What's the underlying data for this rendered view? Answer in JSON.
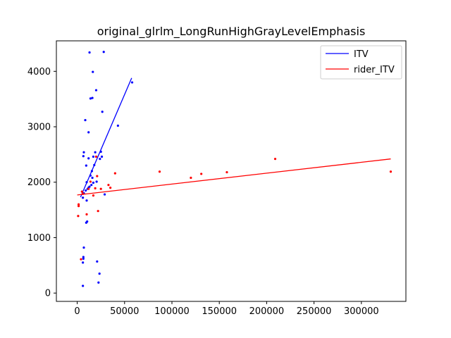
{
  "chart_data": {
    "type": "scatter",
    "title": "original_glrlm_LongRunHighGrayLevelEmphasis",
    "xlabel": "",
    "ylabel": "",
    "xlim": [
      -22000,
      347000
    ],
    "ylim": [
      -150,
      4550
    ],
    "x_ticks": [
      0,
      50000,
      100000,
      150000,
      200000,
      250000,
      300000
    ],
    "x_tick_labels": [
      "0",
      "50000",
      "100000",
      "150000",
      "200000",
      "250000",
      "300000"
    ],
    "y_ticks": [
      0,
      1000,
      2000,
      3000,
      4000
    ],
    "y_tick_labels": [
      "0",
      "1000",
      "2000",
      "3000",
      "4000"
    ],
    "grid": false,
    "legend_position": "top-right",
    "series": [
      {
        "name": "ITV",
        "color": "#0000ff",
        "points": [
          [
            6000,
            130
          ],
          [
            6000,
            550
          ],
          [
            6500,
            620
          ],
          [
            6500,
            650
          ],
          [
            7000,
            820
          ],
          [
            9500,
            1270
          ],
          [
            10500,
            1290
          ],
          [
            10000,
            1670
          ],
          [
            6000,
            1720
          ],
          [
            7000,
            1800
          ],
          [
            9000,
            1850
          ],
          [
            11000,
            1880
          ],
          [
            12000,
            1900
          ],
          [
            13000,
            1920
          ],
          [
            15000,
            1950
          ],
          [
            17000,
            1990
          ],
          [
            10000,
            2000
          ],
          [
            16000,
            2080
          ],
          [
            14000,
            2120
          ],
          [
            15500,
            2200
          ],
          [
            18000,
            2310
          ],
          [
            12000,
            2430
          ],
          [
            17000,
            2460
          ],
          [
            24000,
            2420
          ],
          [
            26000,
            2460
          ],
          [
            6500,
            2470
          ],
          [
            7000,
            2540
          ],
          [
            19000,
            2540
          ],
          [
            25000,
            2550
          ],
          [
            9500,
            2300
          ],
          [
            12000,
            2900
          ],
          [
            43000,
            3020
          ],
          [
            8500,
            3120
          ],
          [
            26500,
            3270
          ],
          [
            14000,
            3510
          ],
          [
            16000,
            3520
          ],
          [
            20000,
            3660
          ],
          [
            16500,
            3990
          ],
          [
            58000,
            3800
          ],
          [
            13000,
            4340
          ],
          [
            28000,
            4350
          ],
          [
            23500,
            350
          ],
          [
            22500,
            190
          ],
          [
            21000,
            570
          ],
          [
            29000,
            1780
          ],
          [
            20500,
            2010
          ]
        ],
        "trend": [
          [
            3500,
            1730
          ],
          [
            57500,
            3880
          ]
        ]
      },
      {
        "name": "rider_ITV",
        "color": "#ff0000",
        "points": [
          [
            1000,
            1390
          ],
          [
            1500,
            1570
          ],
          [
            1500,
            1600
          ],
          [
            4000,
            610
          ],
          [
            5000,
            1830
          ],
          [
            6000,
            1790
          ],
          [
            10000,
            1420
          ],
          [
            12000,
            1880
          ],
          [
            17000,
            1760
          ],
          [
            19000,
            1890
          ],
          [
            21000,
            2110
          ],
          [
            22000,
            1480
          ],
          [
            25000,
            1880
          ],
          [
            33000,
            1950
          ],
          [
            35000,
            1900
          ],
          [
            40000,
            2160
          ],
          [
            87000,
            2190
          ],
          [
            120000,
            2080
          ],
          [
            131000,
            2150
          ],
          [
            158000,
            2180
          ],
          [
            209000,
            2420
          ],
          [
            331000,
            2190
          ],
          [
            14000,
            2010
          ],
          [
            20000,
            2460
          ]
        ],
        "trend": [
          [
            0,
            1770
          ],
          [
            331000,
            2420
          ]
        ]
      }
    ]
  }
}
